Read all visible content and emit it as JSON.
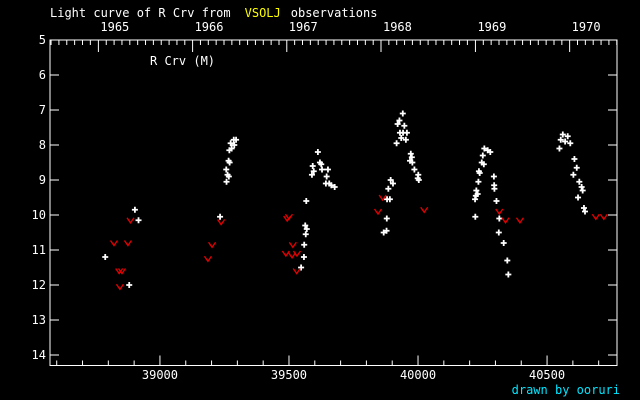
{
  "title": {
    "prefix": "Light curve of R Crv from",
    "source": "VSOLJ",
    "suffix": "observations"
  },
  "series_label": "R Crv (M)",
  "credit": "drawn by ooruri",
  "colors": {
    "background": "#000000",
    "foreground": "#ffffff",
    "frame": "#ffffff",
    "source_highlight": "#ffff00",
    "observation_marker": "#ffffff",
    "limit_marker": "#e00000",
    "credit_text": "#00e5ff"
  },
  "chart_data": {
    "type": "scatter",
    "title": "Light curve of R Crv from VSOLJ observations",
    "grid": false,
    "legend": "none",
    "y_axis": {
      "inverted_magnitude_scale": true,
      "range": [
        5,
        14.3
      ],
      "ticks": [
        5,
        6,
        7,
        8,
        9,
        10,
        11,
        12,
        13,
        14
      ]
    },
    "x_axis": {
      "range": [
        38574,
        40771
      ],
      "major_ticks": [
        39000,
        39500,
        40000,
        40500
      ],
      "minor_step": 100
    },
    "top_axis": {
      "unit": "year",
      "minor": "monthly",
      "year_ticks": [
        {
          "label": "",
          "jd": 38395.5
        },
        {
          "label": "1965",
          "jd": 38761.5
        },
        {
          "label": "1966",
          "jd": 39126.5
        },
        {
          "label": "1967",
          "jd": 39491.5
        },
        {
          "label": "1968",
          "jd": 39856.5
        },
        {
          "label": "1969",
          "jd": 40222.5
        },
        {
          "label": "1970",
          "jd": 40587.5
        }
      ]
    },
    "series": [
      {
        "name": "observations",
        "marker": "plus",
        "color": "#ffffff",
        "points": [
          [
            38788,
            11.2
          ],
          [
            38881,
            12.0
          ],
          [
            38903,
            9.85
          ],
          [
            38917,
            10.15
          ],
          [
            39233,
            10.05
          ],
          [
            39257,
            8.7
          ],
          [
            39258,
            9.05
          ],
          [
            39262,
            8.85
          ],
          [
            39266,
            8.45
          ],
          [
            39267,
            8.9
          ],
          [
            39269,
            8.15
          ],
          [
            39270,
            8.5
          ],
          [
            39274,
            7.95
          ],
          [
            39278,
            8.1
          ],
          [
            39286,
            7.85
          ],
          [
            39288,
            8.0
          ],
          [
            39295,
            7.85
          ],
          [
            39547,
            11.5
          ],
          [
            39558,
            11.2
          ],
          [
            39559,
            10.85
          ],
          [
            39563,
            10.3
          ],
          [
            39565,
            10.55
          ],
          [
            39569,
            10.4
          ],
          [
            39567,
            9.6
          ],
          [
            39589,
            8.85
          ],
          [
            39592,
            8.6
          ],
          [
            39596,
            8.75
          ],
          [
            39612,
            8.2
          ],
          [
            39620,
            8.5
          ],
          [
            39625,
            8.55
          ],
          [
            39628,
            8.7
          ],
          [
            39643,
            9.1
          ],
          [
            39646,
            8.9
          ],
          [
            39651,
            8.7
          ],
          [
            39656,
            9.1
          ],
          [
            39664,
            9.15
          ],
          [
            39677,
            9.2
          ],
          [
            39867,
            10.5
          ],
          [
            39878,
            10.45
          ],
          [
            39879,
            10.1
          ],
          [
            39880,
            9.55
          ],
          [
            39891,
            9.55
          ],
          [
            39885,
            9.25
          ],
          [
            39894,
            9.0
          ],
          [
            39903,
            9.1
          ],
          [
            39917,
            7.95
          ],
          [
            39921,
            7.4
          ],
          [
            39928,
            7.3
          ],
          [
            39941,
            7.1
          ],
          [
            39930,
            7.65
          ],
          [
            39935,
            7.8
          ],
          [
            39942,
            7.65
          ],
          [
            39947,
            7.45
          ],
          [
            39953,
            7.85
          ],
          [
            39957,
            7.65
          ],
          [
            39969,
            8.45
          ],
          [
            39972,
            8.25
          ],
          [
            39976,
            8.35
          ],
          [
            39978,
            8.5
          ],
          [
            39986,
            8.7
          ],
          [
            39999,
            8.95
          ],
          [
            40001,
            8.85
          ],
          [
            40003,
            9.0
          ],
          [
            40221,
            9.55
          ],
          [
            40222,
            10.05
          ],
          [
            40224,
            9.45
          ],
          [
            40226,
            9.3
          ],
          [
            40231,
            9.4
          ],
          [
            40234,
            9.05
          ],
          [
            40236,
            8.75
          ],
          [
            40239,
            8.8
          ],
          [
            40247,
            8.5
          ],
          [
            40251,
            8.3
          ],
          [
            40255,
            8.55
          ],
          [
            40257,
            8.1
          ],
          [
            40270,
            8.15
          ],
          [
            40280,
            8.2
          ],
          [
            40294,
            8.9
          ],
          [
            40295,
            9.15
          ],
          [
            40296,
            9.25
          ],
          [
            40304,
            9.6
          ],
          [
            40313,
            10.5
          ],
          [
            40315,
            10.1
          ],
          [
            40332,
            10.8
          ],
          [
            40346,
            11.3
          ],
          [
            40350,
            11.7
          ],
          [
            40548,
            8.1
          ],
          [
            40553,
            7.85
          ],
          [
            40561,
            7.7
          ],
          [
            40570,
            7.9
          ],
          [
            40580,
            7.75
          ],
          [
            40590,
            7.95
          ],
          [
            40602,
            8.85
          ],
          [
            40606,
            8.4
          ],
          [
            40615,
            8.65
          ],
          [
            40620,
            9.5
          ],
          [
            40625,
            9.05
          ],
          [
            40634,
            9.2
          ],
          [
            40638,
            9.3
          ],
          [
            40643,
            9.8
          ],
          [
            40647,
            9.9
          ]
        ]
      },
      {
        "name": "fainter-than-limits",
        "marker": "v",
        "color": "#e00000",
        "points": [
          [
            38822,
            10.8
          ],
          [
            38842,
            11.6
          ],
          [
            38845,
            12.05
          ],
          [
            38853,
            11.6
          ],
          [
            38876,
            10.8
          ],
          [
            38886,
            10.15
          ],
          [
            39186,
            11.25
          ],
          [
            39202,
            10.85
          ],
          [
            39237,
            10.2
          ],
          [
            39488,
            11.1
          ],
          [
            39493,
            10.1
          ],
          [
            39500,
            10.05
          ],
          [
            39512,
            11.15
          ],
          [
            39515,
            10.85
          ],
          [
            39531,
            11.1
          ],
          [
            39530,
            11.6
          ],
          [
            39845,
            9.9
          ],
          [
            39863,
            9.5
          ],
          [
            40024,
            9.85
          ],
          [
            40315,
            9.9
          ],
          [
            40339,
            10.15
          ],
          [
            40395,
            10.15
          ],
          [
            40689,
            10.05
          ],
          [
            40720,
            10.05
          ]
        ]
      }
    ]
  }
}
